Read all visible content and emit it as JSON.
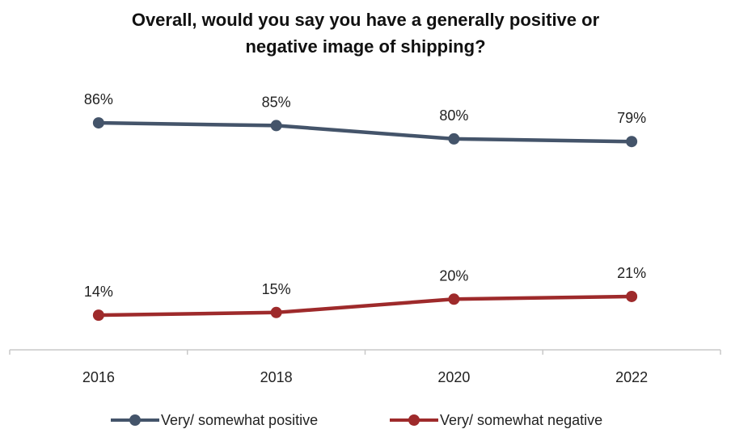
{
  "chart_data": {
    "type": "line",
    "title": "Overall, would you say you have a generally positive or negative image of shipping?",
    "title_lines": [
      "Overall, would you say you have a generally positive or",
      "negative image of shipping?"
    ],
    "categories": [
      "2016",
      "2018",
      "2020",
      "2022"
    ],
    "series": [
      {
        "name": "Very/ somewhat positive",
        "values": [
          86,
          85,
          80,
          79
        ],
        "labels": [
          "86%",
          "85%",
          "80%",
          "79%"
        ],
        "color": "#44546a"
      },
      {
        "name": "Very/ somewhat negative",
        "values": [
          14,
          15,
          20,
          21
        ],
        "labels": [
          "14%",
          "15%",
          "20%",
          "21%"
        ],
        "color": "#9e2a2b"
      }
    ],
    "ylim": [
      0,
      100
    ],
    "grid": false,
    "legend_position": "bottom"
  }
}
